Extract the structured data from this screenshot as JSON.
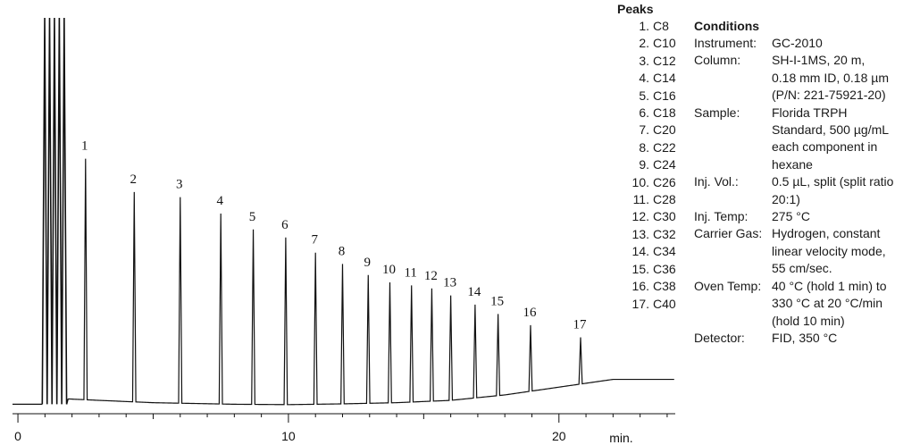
{
  "chart_data": {
    "type": "line",
    "title": "",
    "xlabel": "",
    "x_unit": "min.",
    "ylabel": "",
    "xlim": [
      -0.2,
      24.3
    ],
    "x_ticks": [
      0,
      10,
      20
    ],
    "grid": false,
    "legend": "none",
    "solvent_front": {
      "start": 0.9,
      "end": 1.8
    },
    "baseline": [
      [
        1.75,
        2.0
      ],
      [
        3.0,
        1.6
      ],
      [
        5.0,
        1.0
      ],
      [
        8.0,
        0.6
      ],
      [
        10.0,
        0.5
      ],
      [
        12.0,
        0.7
      ],
      [
        14.0,
        1.0
      ],
      [
        16.0,
        1.6
      ],
      [
        18.0,
        3.0
      ],
      [
        20.0,
        5.0
      ],
      [
        22.0,
        7.0
      ],
      [
        24.3,
        7.0
      ]
    ],
    "peaks": [
      {
        "label": "1",
        "rt": 2.5,
        "height": 62
      },
      {
        "label": "2",
        "rt": 4.3,
        "height": 54
      },
      {
        "label": "3",
        "rt": 6.0,
        "height": 53
      },
      {
        "label": "4",
        "rt": 7.5,
        "height": 49
      },
      {
        "label": "5",
        "rt": 8.7,
        "height": 45
      },
      {
        "label": "6",
        "rt": 9.9,
        "height": 43
      },
      {
        "label": "7",
        "rt": 11.0,
        "height": 39
      },
      {
        "label": "8",
        "rt": 12.0,
        "height": 36
      },
      {
        "label": "9",
        "rt": 12.95,
        "height": 33
      },
      {
        "label": "10",
        "rt": 13.75,
        "height": 31
      },
      {
        "label": "11",
        "rt": 14.55,
        "height": 30
      },
      {
        "label": "12",
        "rt": 15.3,
        "height": 29
      },
      {
        "label": "13",
        "rt": 16.0,
        "height": 27
      },
      {
        "label": "14",
        "rt": 16.9,
        "height": 24
      },
      {
        "label": "15",
        "rt": 17.75,
        "height": 21
      },
      {
        "label": "16",
        "rt": 18.95,
        "height": 17
      },
      {
        "label": "17",
        "rt": 20.8,
        "height": 12
      }
    ]
  },
  "peaks_legend": {
    "title": "Peaks",
    "items": [
      {
        "num": "1.",
        "name": "C8"
      },
      {
        "num": "2.",
        "name": "C10"
      },
      {
        "num": "3.",
        "name": "C12"
      },
      {
        "num": "4.",
        "name": "C14"
      },
      {
        "num": "5.",
        "name": "C16"
      },
      {
        "num": "6.",
        "name": "C18"
      },
      {
        "num": "7.",
        "name": "C20"
      },
      {
        "num": "8.",
        "name": "C22"
      },
      {
        "num": "9.",
        "name": "C24"
      },
      {
        "num": "10.",
        "name": "C26"
      },
      {
        "num": "11.",
        "name": "C28"
      },
      {
        "num": "12.",
        "name": "C30"
      },
      {
        "num": "13.",
        "name": "C32"
      },
      {
        "num": "14.",
        "name": "C34"
      },
      {
        "num": "15.",
        "name": "C36"
      },
      {
        "num": "16.",
        "name": "C38"
      },
      {
        "num": "17.",
        "name": "C40"
      }
    ]
  },
  "conditions": {
    "title": "Conditions",
    "rows": [
      {
        "label": "Instrument:",
        "lines": [
          "GC-2010"
        ]
      },
      {
        "label": "Column:",
        "lines": [
          "SH-I-1MS, 20 m,",
          "0.18 mm ID, 0.18 µm",
          "(P/N: 221-75921-20)"
        ]
      },
      {
        "label": "Sample:",
        "lines": [
          "Florida TRPH",
          "Standard, 500 µg/mL",
          "each component in",
          "hexane"
        ]
      },
      {
        "label": "Inj. Vol.:",
        "lines": [
          "0.5 µL, split (split ratio",
          "20:1)"
        ]
      },
      {
        "label": "Inj. Temp:",
        "lines": [
          "275 °C"
        ]
      },
      {
        "label": "Carrier Gas:",
        "lines": [
          "Hydrogen, constant",
          "linear velocity mode,",
          "55 cm/sec."
        ]
      },
      {
        "label": "Oven Temp:",
        "lines": [
          "40 °C (hold 1 min) to",
          "330 °C at 20 °C/min",
          "(hold 10 min)"
        ]
      },
      {
        "label": "Detector:",
        "lines": [
          "FID, 350 °C"
        ]
      }
    ]
  }
}
